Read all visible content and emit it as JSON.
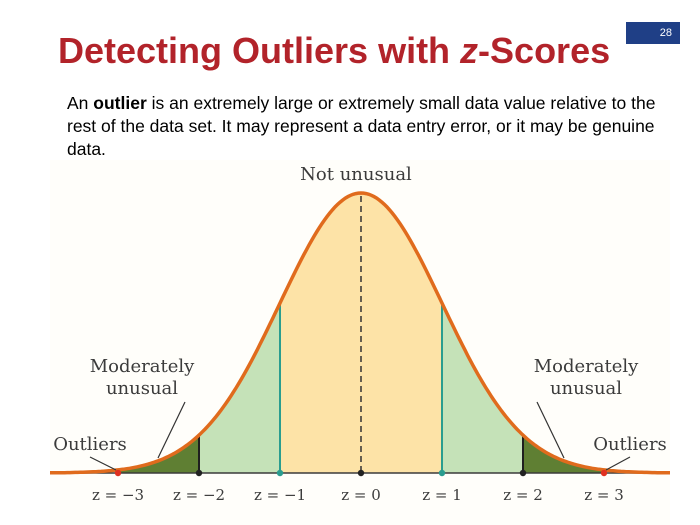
{
  "slide": {
    "number": "28",
    "title_main": "Detecting Outliers with ",
    "title_z": "z",
    "title_rest": "-Scores",
    "definition": {
      "part1": "An ",
      "term": "outlier",
      "part2": " is an extremely large or extremely small data value relative to the rest of the data set. It may represent a data entry error, or it may be genuine data."
    }
  },
  "diagram": {
    "labels": {
      "center": "Not unusual",
      "moderately_left_1": "Moderately",
      "moderately_left_2": "unusual",
      "moderately_right_1": "Moderately",
      "moderately_right_2": "unusual",
      "outliers_left": "Outliers",
      "outliers_right": "Outliers"
    },
    "z_values": [
      -3,
      -2,
      -1,
      0,
      1,
      2,
      3
    ],
    "z_labels": [
      "z = −3",
      "z = −2",
      "z = −1",
      "z = 0",
      "z = 1",
      "z = 2",
      "z = 3"
    ],
    "regions": [
      {
        "name": "not-unusual",
        "from": -1,
        "to": 1,
        "color": "#fde3a7"
      },
      {
        "name": "moderately-unusual",
        "from": 1,
        "to": 2,
        "color": "#c5e2b8"
      },
      {
        "name": "outlier",
        "from": 2,
        "to": 3,
        "color": "#5f7f33"
      }
    ],
    "colors": {
      "curve": "#e06b1d",
      "boundary_1sd": "#2a9d8f",
      "boundary_2sd": "#1f1f1f",
      "outlier_marker": "#e03020",
      "axis": "#3b3b3b"
    }
  }
}
